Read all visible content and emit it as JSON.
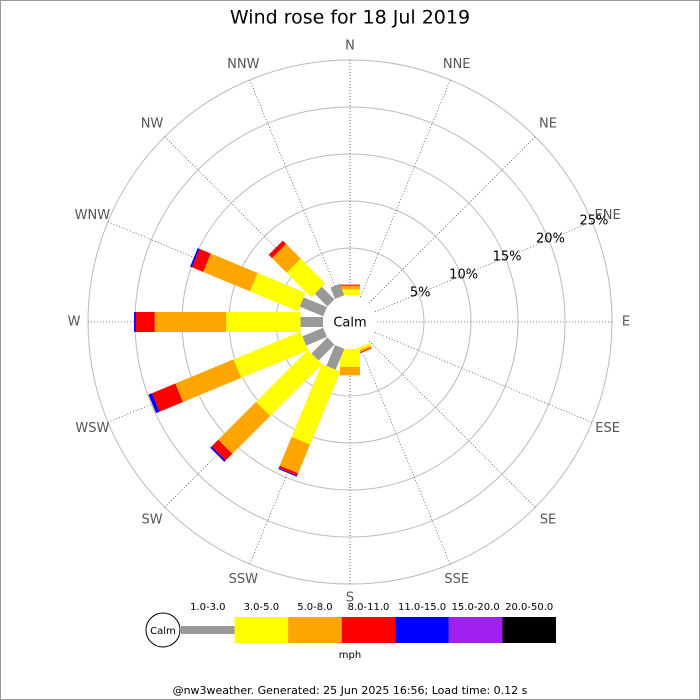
{
  "chart_data": {
    "type": "wind_rose",
    "title": "Wind rose for 18 Jul 2019",
    "directions": [
      "N",
      "NNE",
      "NE",
      "ENE",
      "E",
      "ESE",
      "SE",
      "SSE",
      "S",
      "SSW",
      "SW",
      "WSW",
      "W",
      "WNW",
      "NW",
      "NNW"
    ],
    "series": [
      {
        "name": "1.0-3.0",
        "color": "#999999",
        "values": [
          0,
          0,
          0,
          0,
          0,
          0,
          0,
          0,
          0,
          2.4,
          2.4,
          2.4,
          2.4,
          2.7,
          1.9,
          1.3
        ]
      },
      {
        "name": "3.0-5.0",
        "color": "#ffff00",
        "values": [
          0.6,
          0,
          0,
          0,
          0,
          0,
          0,
          0.3,
          1.9,
          8.4,
          7.8,
          7.7,
          7.9,
          5.5,
          3.7,
          0
        ]
      },
      {
        "name": "5.0-8.0",
        "color": "#ffa500",
        "values": [
          0.4,
          0,
          0,
          0,
          0,
          0,
          0,
          0.2,
          0.9,
          3.3,
          5.7,
          6.7,
          7.6,
          5.4,
          2.2,
          0
        ]
      },
      {
        "name": "8.0-11.0",
        "color": "#ff0000",
        "values": [
          0.1,
          0,
          0,
          0,
          0,
          0,
          0,
          0.1,
          0,
          0.3,
          1.0,
          2.7,
          2.0,
          1.3,
          0.5,
          0
        ]
      },
      {
        "name": "11.0-15.0",
        "color": "#0000ff",
        "values": [
          0,
          0,
          0,
          0,
          0,
          0,
          0,
          0,
          0,
          0.1,
          0.2,
          0.4,
          0.2,
          0.2,
          0,
          0
        ]
      },
      {
        "name": "15.0-20.0",
        "color": "#a020f0",
        "values": [
          0,
          0,
          0,
          0,
          0,
          0,
          0,
          0,
          0,
          0,
          0,
          0,
          0,
          0,
          0,
          0
        ]
      },
      {
        "name": "20.0-50.0",
        "color": "#000000",
        "values": [
          0,
          0,
          0,
          0,
          0,
          0,
          0,
          0,
          0,
          0,
          0,
          0,
          0,
          0,
          0,
          0
        ]
      }
    ],
    "rlim": [
      0,
      25
    ],
    "rticks": [
      {
        "value": 5,
        "label": "5%"
      },
      {
        "value": 10,
        "label": "10%"
      },
      {
        "value": 15,
        "label": "15%"
      },
      {
        "value": 20,
        "label": "20%"
      },
      {
        "value": 25,
        "label": "25%"
      }
    ],
    "calm_label": "Calm",
    "unit_label": "mph"
  },
  "footer": "@nw3weather. Generated: 25 Jun 2025 16:56; Load time: 0.12 s"
}
